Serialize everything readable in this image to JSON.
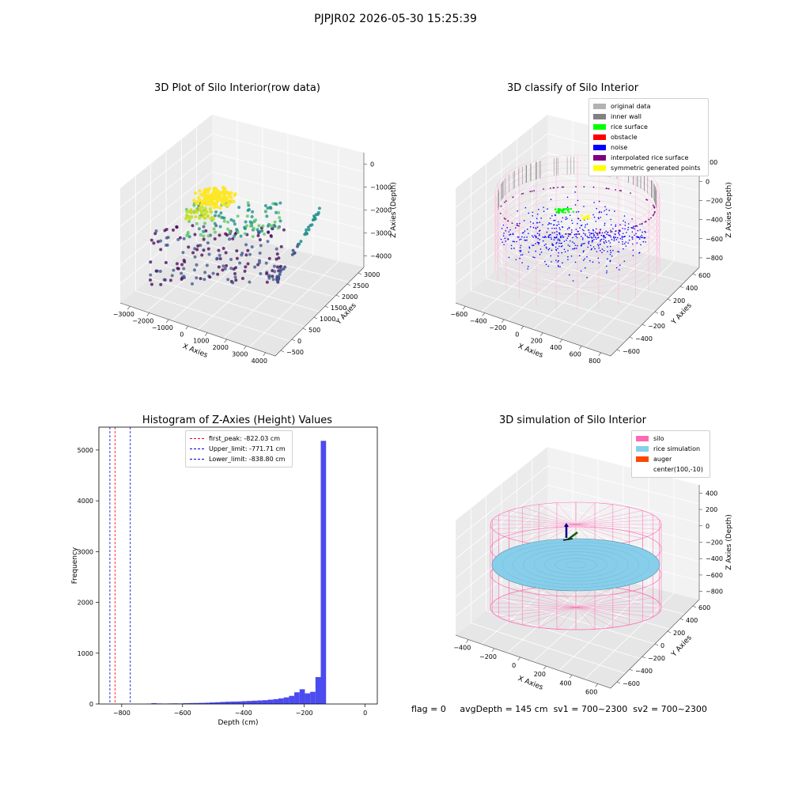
{
  "figure": {
    "suptitle": "PJPJR02 2026-05-30 15:25:39",
    "footer": {
      "flag": "flag = 0",
      "avg_depth": "avgDepth = 145 cm",
      "sv1": "sv1 = 700~2300",
      "sv2": "sv2 = 700~2300"
    }
  },
  "chart_data": [
    {
      "type": "scatter",
      "title": "3D Plot of Silo Interior(row data)",
      "xlabel": "X Axies",
      "ylabel": "Y Axies",
      "zlabel": "Z Axies (Depth)",
      "x_ticks": [
        "−3000",
        "−2000",
        "−1000",
        "0",
        "1000",
        "2000",
        "3000",
        "4000"
      ],
      "y_ticks": [
        "−500",
        "0",
        "500",
        "1000",
        "1500",
        "2000",
        "2500",
        "3000"
      ],
      "z_ticks": [
        "−4000",
        "−3000",
        "−2000",
        "−1000",
        "0"
      ],
      "colormap": [
        "#440154",
        "#3b528b",
        "#21918c",
        "#5ec962",
        "#fde725"
      ]
    },
    {
      "type": "scatter",
      "title": "3D classify of Silo Interior",
      "xlabel": "X Axies",
      "ylabel": "Y Axies",
      "zlabel": "Z Axies (Depth)",
      "x_ticks": [
        "−600",
        "−400",
        "−200",
        "0",
        "200",
        "400",
        "600",
        "800"
      ],
      "y_ticks": [
        "−600",
        "−400",
        "−200",
        "0",
        "200",
        "400",
        "600"
      ],
      "z_ticks": [
        "−800",
        "−600",
        "−400",
        "−200",
        "0",
        "200"
      ],
      "legend": [
        {
          "label": "original data",
          "color": "#b3b3b3"
        },
        {
          "label": "inner wall",
          "color": "#808080"
        },
        {
          "label": "rice surface",
          "color": "#00ff00"
        },
        {
          "label": "obstacle",
          "color": "#ff0000"
        },
        {
          "label": "noise",
          "color": "#0000ff"
        },
        {
          "label": "interpolated rice surface",
          "color": "#800080"
        },
        {
          "label": "symmetric generated points",
          "color": "#ffff00"
        }
      ]
    },
    {
      "type": "bar",
      "title": "Histogram of Z-Axies (Height) Values",
      "xlabel": "Depth (cm)",
      "ylabel": "Frequency",
      "xlim": [
        -875,
        40
      ],
      "ylim": [
        0,
        5450
      ],
      "x_ticks": [
        -800,
        -600,
        -400,
        -200,
        0
      ],
      "y_ticks": [
        0,
        1000,
        2000,
        3000,
        4000,
        5000
      ],
      "bar_color": "#4b4bf0",
      "bins": {
        "start": -720,
        "width": 17.4,
        "values": [
          5,
          15,
          10,
          8,
          10,
          12,
          10,
          15,
          18,
          20,
          22,
          25,
          30,
          35,
          40,
          45,
          48,
          50,
          55,
          60,
          65,
          70,
          75,
          85,
          95,
          110,
          130,
          160,
          230,
          290,
          210,
          240,
          530,
          5180
        ]
      },
      "vlines": [
        {
          "label": "first_peak: -822.03 cm",
          "x": -822.03,
          "color": "#ff0000"
        },
        {
          "label": "Upper_limit: -771.71 cm",
          "x": -771.71,
          "color": "#0000cc"
        },
        {
          "label": "Lower_limit: -838.80 cm",
          "x": -838.8,
          "color": "#0000cc"
        }
      ]
    },
    {
      "type": "scatter",
      "title": "3D simulation of Silo Interior",
      "xlabel": "X Axies",
      "ylabel": "Y Axies",
      "zlabel": "Z Axies (Depth)",
      "x_ticks": [
        "−400",
        "−200",
        "0",
        "200",
        "400",
        "600"
      ],
      "y_ticks": [
        "−600",
        "−400",
        "−200",
        "0",
        "200",
        "400",
        "600"
      ],
      "z_ticks": [
        "−800",
        "−600",
        "−400",
        "−200",
        "0",
        "200",
        "400"
      ],
      "legend": [
        {
          "label": "silo",
          "color": "#ff69b4"
        },
        {
          "label": "rice simulation",
          "color": "#87ceeb"
        },
        {
          "label": "auger",
          "color": "#ff4500"
        },
        {
          "label": "center(100,-10)",
          "color": ""
        }
      ]
    }
  ]
}
